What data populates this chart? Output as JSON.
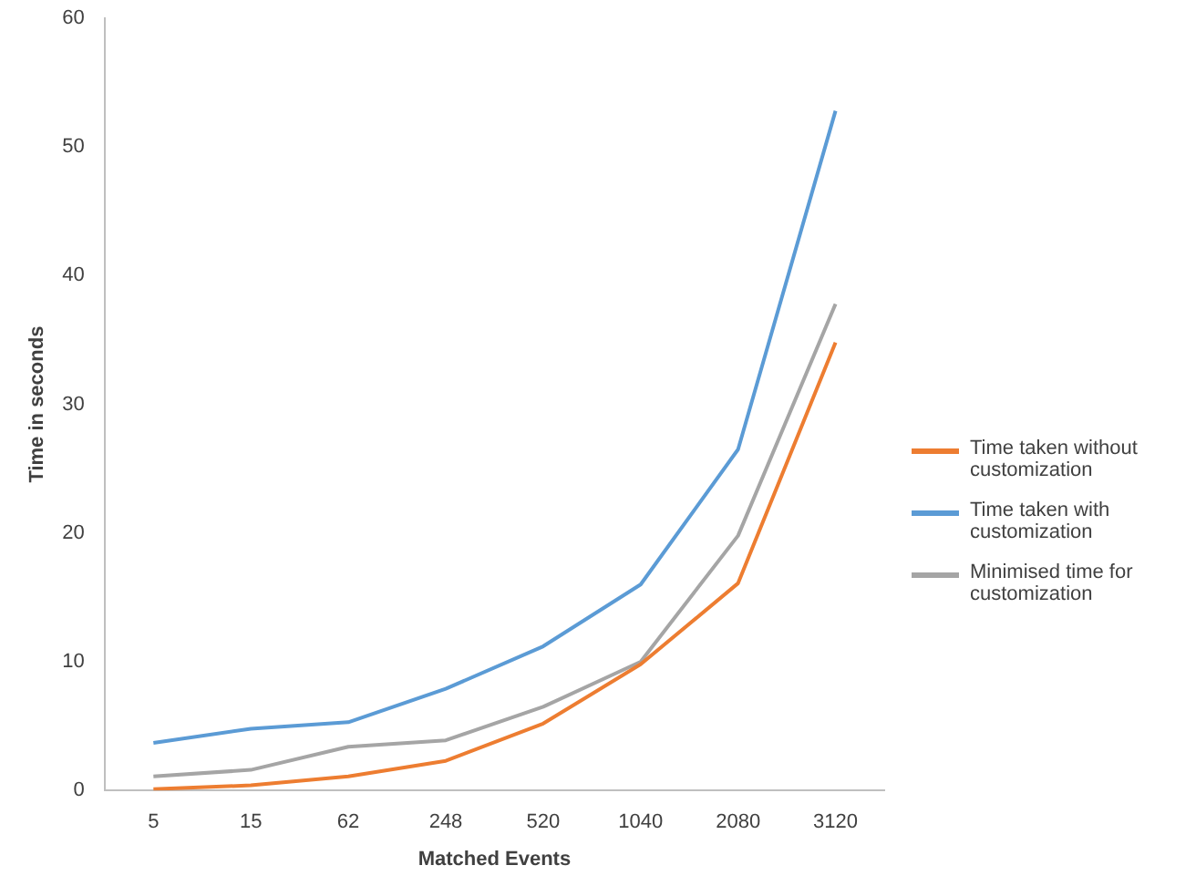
{
  "chart_data": {
    "type": "line",
    "xlabel": "Matched Events",
    "ylabel": "Time in seconds",
    "categories": [
      "5",
      "15",
      "62",
      "248",
      "520",
      "1040",
      "2080",
      "3120"
    ],
    "series": [
      {
        "name": "Time taken without customization",
        "color": "#ed7d31",
        "values": [
          0.1,
          0.4,
          1.1,
          2.3,
          5.2,
          9.8,
          16.1,
          34.8
        ]
      },
      {
        "name": "Time taken with customization",
        "color": "#5b9bd5",
        "values": [
          3.7,
          4.8,
          5.3,
          7.9,
          11.2,
          16,
          26.5,
          52.8
        ]
      },
      {
        "name": "Minimised time for customization",
        "color": "#a5a5a5",
        "values": [
          1.1,
          1.6,
          3.4,
          3.9,
          6.5,
          10,
          19.8,
          37.8
        ]
      }
    ],
    "ylim": [
      0,
      60
    ],
    "yticks": [
      0,
      10,
      20,
      30,
      40,
      50,
      60
    ],
    "grid": false,
    "legend": "right",
    "marker": "none",
    "line_style": "solid"
  }
}
